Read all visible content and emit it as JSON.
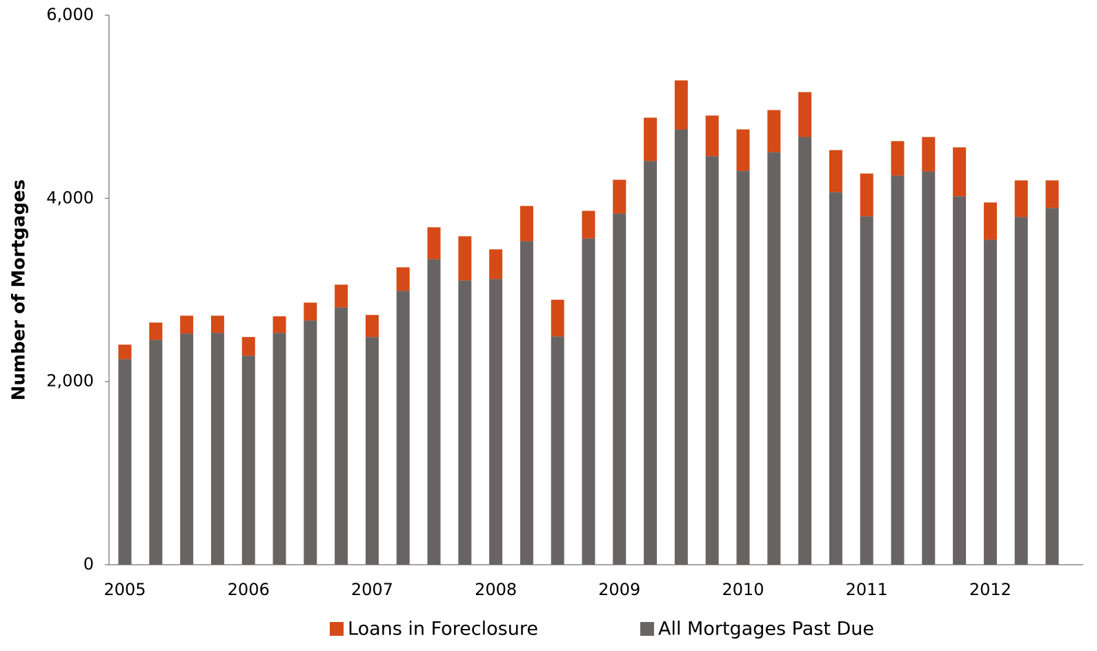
{
  "chart_data": {
    "type": "bar",
    "stacked": true,
    "y_label": "Number of Mortgages",
    "categories": [
      "2005",
      null,
      null,
      null,
      "2006",
      null,
      null,
      null,
      "2007",
      null,
      null,
      null,
      "2008",
      null,
      null,
      null,
      "2009",
      null,
      null,
      null,
      "2010",
      null,
      null,
      null,
      "2011",
      null,
      null,
      null,
      "2012",
      null,
      null
    ],
    "series": [
      {
        "name": "All Mortgages Past Due",
        "color": "#686463",
        "values": [
          2245,
          2456,
          2524,
          2531,
          2282,
          2531,
          2667,
          2810,
          2486,
          2991,
          3337,
          3104,
          3119,
          3533,
          2493,
          3563,
          3834,
          4407,
          4753,
          4460,
          4301,
          4505,
          4670,
          4068,
          3804,
          4249,
          4294,
          4023,
          3548,
          3797,
          3895
        ]
      },
      {
        "name": "Loans in Foreclosure",
        "color": "#d54a17",
        "values": [
          158,
          188,
          195,
          188,
          204,
          181,
          195,
          248,
          241,
          256,
          347,
          482,
          324,
          384,
          400,
          301,
          369,
          474,
          535,
          444,
          452,
          459,
          490,
          459,
          467,
          376,
          376,
          534,
          407,
          399,
          301
        ]
      }
    ],
    "ylim": [
      0,
      6000
    ],
    "yticks": [
      0,
      {
        "value": 2000,
        "label": "2,000"
      },
      {
        "value": 4000,
        "label": "4,000"
      },
      {
        "value": 6000,
        "label": "6,000"
      }
    ],
    "legend": "bottom"
  }
}
